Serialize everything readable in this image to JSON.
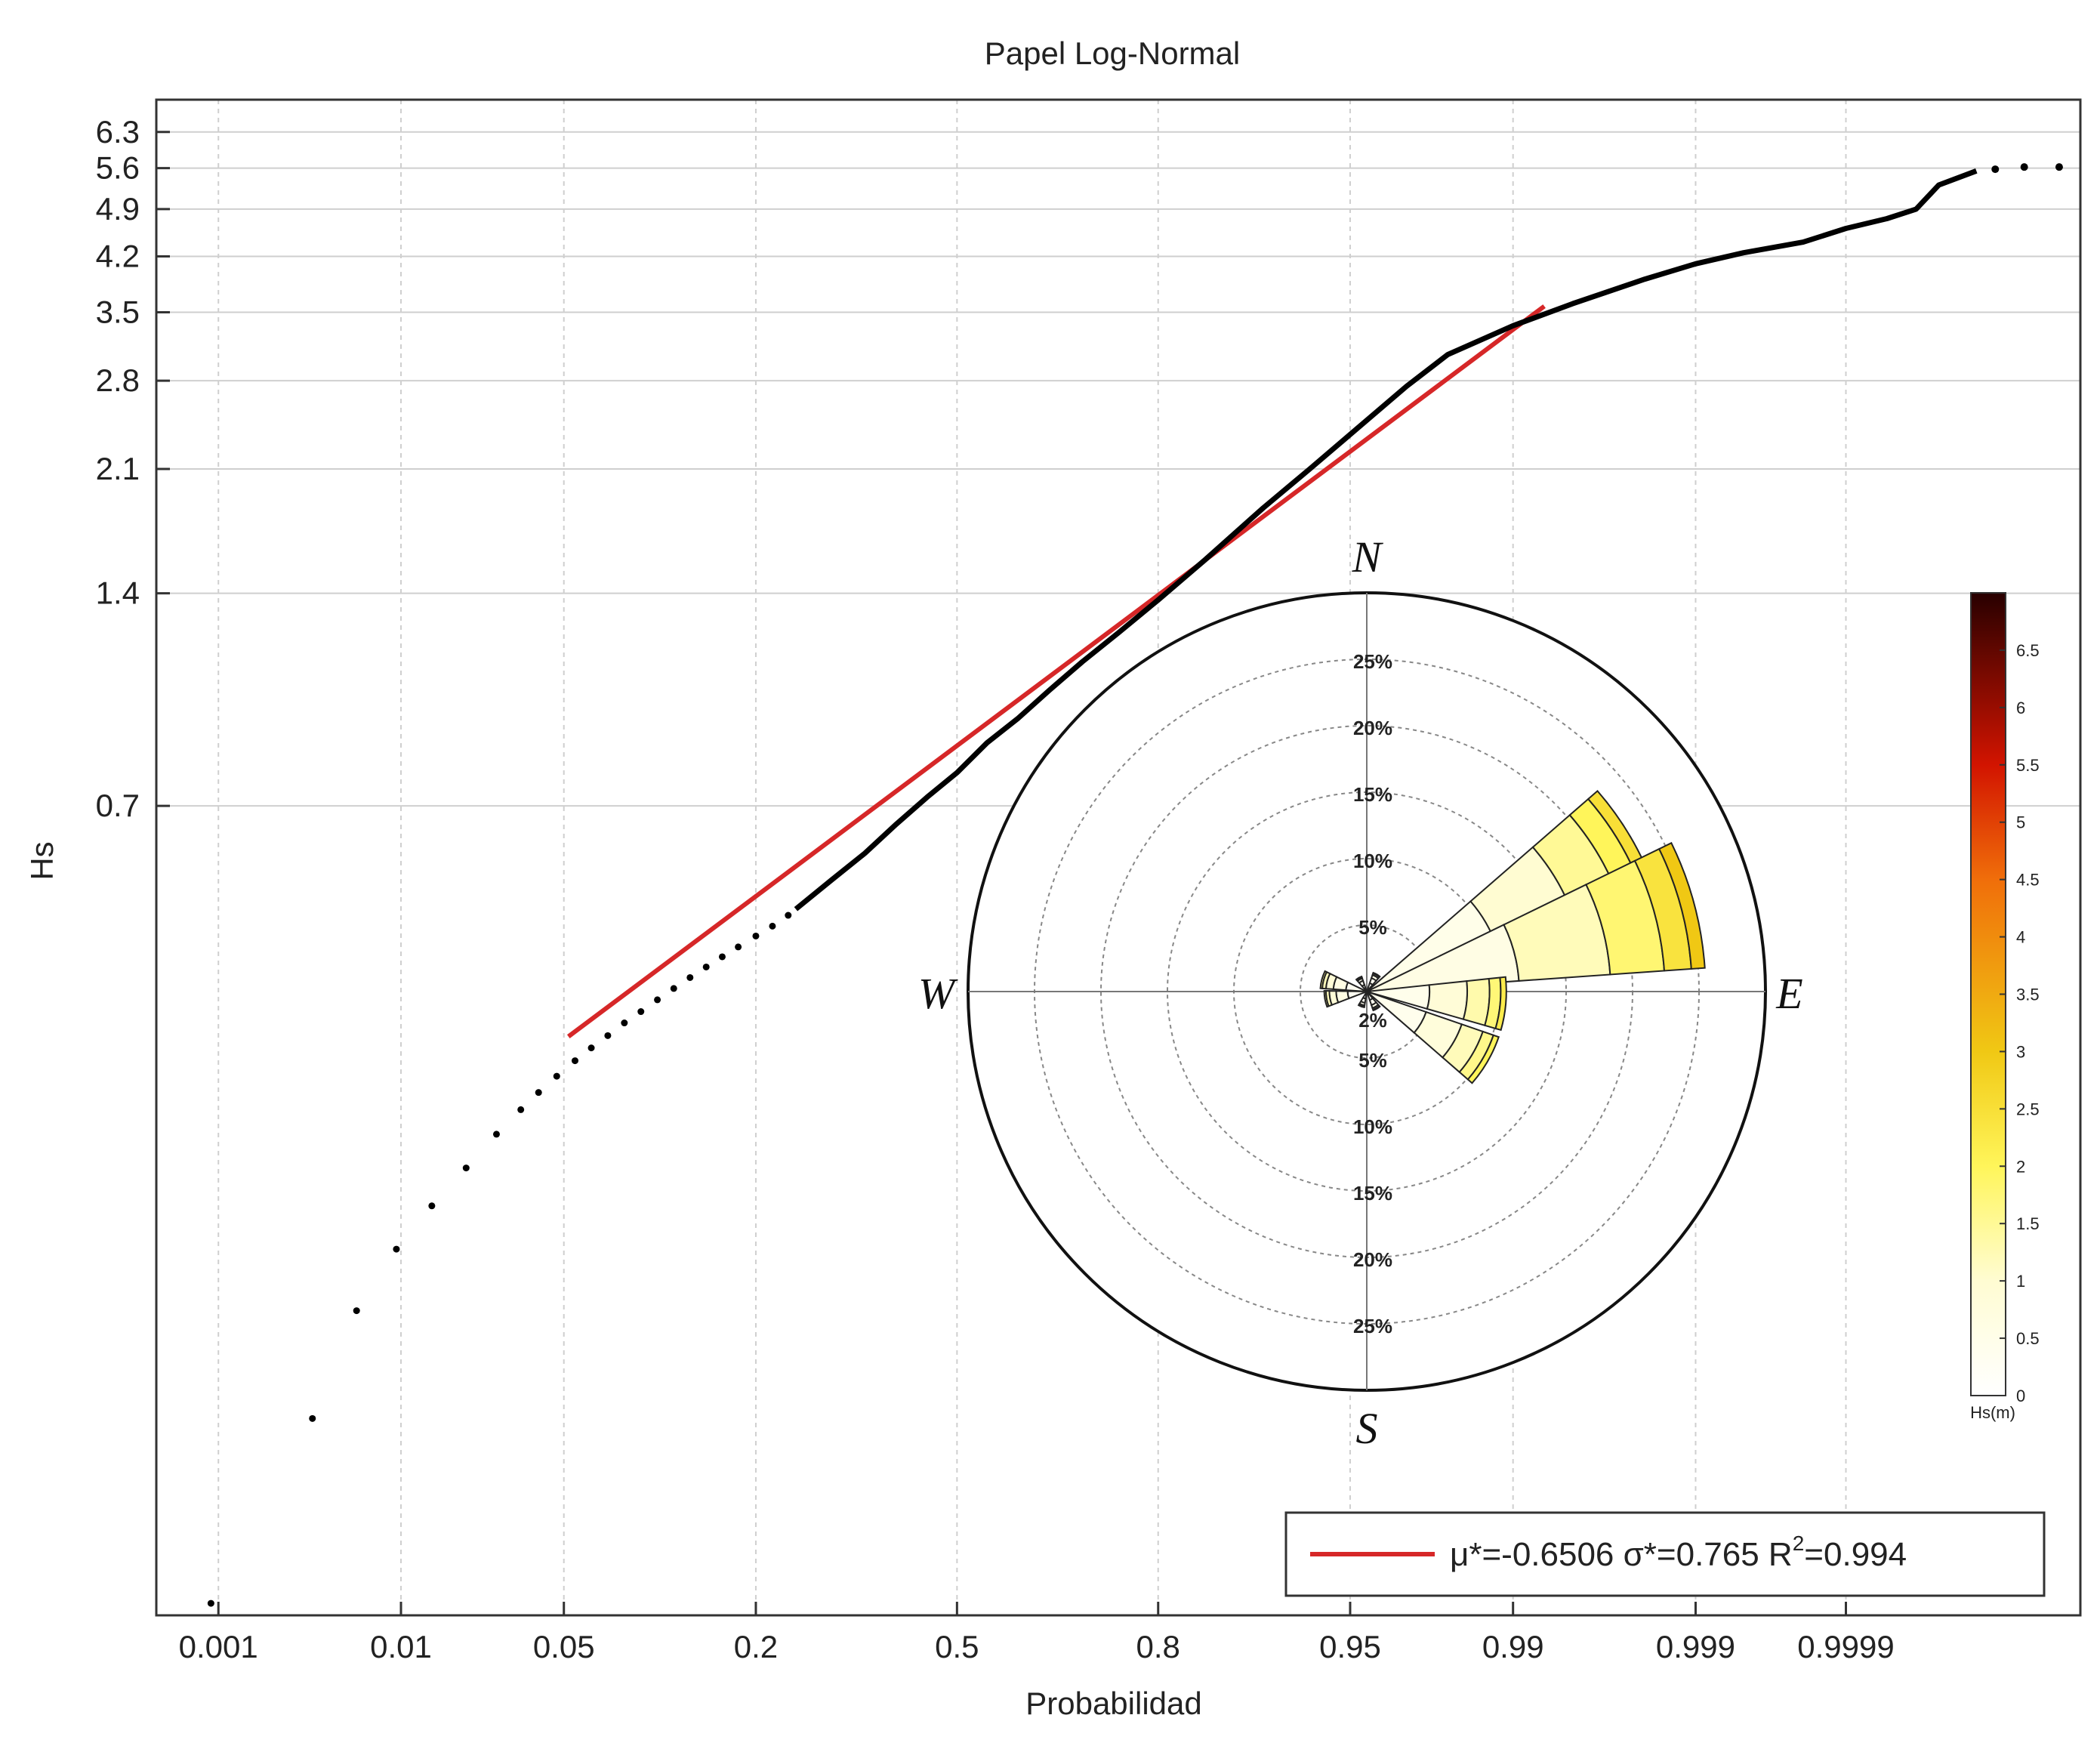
{
  "chart_data": {
    "type": "scatter",
    "title": "Papel Log-Normal",
    "xlabel": "Probabilidad",
    "ylabel": "Hs",
    "x_ticks": [
      "0.001",
      "0.01",
      "0.05",
      "0.2",
      "0.5",
      "0.8",
      "0.95",
      "0.99",
      "0.999",
      "0.9999"
    ],
    "y_ticks": [
      "0.7",
      "1.4",
      "2.1",
      "2.8",
      "3.5",
      "4.2",
      "4.9",
      "5.6",
      "6.3"
    ],
    "grid": true,
    "legend": {
      "placement": "bottom-right",
      "entries": [
        {
          "label": "μ*=-0.6506 σ*=0.765 R",
          "sup": "2",
          "tail": "=0.994",
          "color": "#d62728"
        }
      ]
    },
    "series": [
      {
        "kind": "empirical",
        "color": "#000000",
        "points": [
          [
            0.0009,
            0.052
          ],
          [
            0.0035,
            0.095
          ],
          [
            0.006,
            0.135
          ],
          [
            0.0095,
            0.165
          ],
          [
            0.014,
            0.19
          ],
          [
            0.02,
            0.215
          ],
          [
            0.027,
            0.24
          ],
          [
            0.034,
            0.26
          ],
          [
            0.04,
            0.275
          ],
          [
            0.047,
            0.29
          ],
          [
            0.055,
            0.305
          ],
          [
            0.063,
            0.318
          ],
          [
            0.072,
            0.331
          ],
          [
            0.082,
            0.345
          ],
          [
            0.093,
            0.358
          ],
          [
            0.105,
            0.372
          ],
          [
            0.118,
            0.386
          ],
          [
            0.132,
            0.4
          ],
          [
            0.147,
            0.414
          ],
          [
            0.163,
            0.428
          ],
          [
            0.18,
            0.442
          ],
          [
            0.2,
            0.458
          ],
          [
            0.22,
            0.473
          ],
          [
            0.24,
            0.49
          ]
        ],
        "curve": [
          [
            0.25,
            0.5
          ],
          [
            0.3,
            0.55
          ],
          [
            0.35,
            0.6
          ],
          [
            0.4,
            0.66
          ],
          [
            0.45,
            0.72
          ],
          [
            0.5,
            0.78
          ],
          [
            0.55,
            0.86
          ],
          [
            0.6,
            0.93
          ],
          [
            0.65,
            1.02
          ],
          [
            0.7,
            1.12
          ],
          [
            0.75,
            1.23
          ],
          [
            0.8,
            1.37
          ],
          [
            0.85,
            1.56
          ],
          [
            0.9,
            1.85
          ],
          [
            0.93,
            2.1
          ],
          [
            0.95,
            2.35
          ],
          [
            0.97,
            2.75
          ],
          [
            0.98,
            3.05
          ],
          [
            0.99,
            3.35
          ],
          [
            0.995,
            3.6
          ],
          [
            0.998,
            3.9
          ],
          [
            0.999,
            4.1
          ],
          [
            0.9995,
            4.25
          ],
          [
            0.9998,
            4.4
          ],
          [
            0.9999,
            4.6
          ],
          [
            0.99995,
            4.75
          ],
          [
            0.99997,
            4.9
          ],
          [
            0.99998,
            5.3
          ],
          [
            0.99999,
            5.55
          ]
        ],
        "tail_points": [
          [
            0.999993,
            5.58
          ],
          [
            0.999996,
            5.62
          ],
          [
            0.999998,
            5.62
          ]
        ]
      },
      {
        "kind": "fit",
        "color": "#d62728",
        "line": [
          [
            0.052,
            0.33
          ],
          [
            0.993,
            3.57
          ]
        ]
      }
    ]
  },
  "inset_rose": {
    "directions": {
      "n": "N",
      "s": "S",
      "e": "E",
      "w": "W"
    },
    "ring_labels_upper": [
      "5%",
      "10%",
      "15%",
      "20%",
      "25%"
    ],
    "ring_labels_lower": [
      "2%",
      "5%",
      "10%",
      "15%",
      "20%",
      "25%"
    ],
    "ring_values": [
      5,
      10,
      15,
      20,
      25
    ],
    "rmax": 30,
    "petals": [
      {
        "dir_deg": 60,
        "pct": 23,
        "hs_max": 2.5
      },
      {
        "dir_deg": 75,
        "pct": 25.5,
        "hs_max": 3.0
      },
      {
        "dir_deg": 95,
        "pct": 10.5,
        "hs_max": 2.2
      },
      {
        "dir_deg": 120,
        "pct": 10.5,
        "hs_max": 2.0
      },
      {
        "dir_deg": 285,
        "pct": 3.5,
        "hs_max": 1.5
      },
      {
        "dir_deg": 260,
        "pct": 3.2,
        "hs_max": 1.5
      },
      {
        "dir_deg": 30,
        "pct": 1.5,
        "hs_max": 0.8
      },
      {
        "dir_deg": 150,
        "pct": 1.5,
        "hs_max": 0.8
      },
      {
        "dir_deg": 200,
        "pct": 1.2,
        "hs_max": 0.6
      },
      {
        "dir_deg": 330,
        "pct": 1.2,
        "hs_max": 0.6
      }
    ],
    "colorbar": {
      "label": "Hs(m)",
      "ticks": [
        "0",
        "0.5",
        "1",
        "1.5",
        "2",
        "2.5",
        "3",
        "3.5",
        "4",
        "4.5",
        "5",
        "5.5",
        "6",
        "6.5"
      ],
      "min": 0,
      "max": 7
    }
  }
}
